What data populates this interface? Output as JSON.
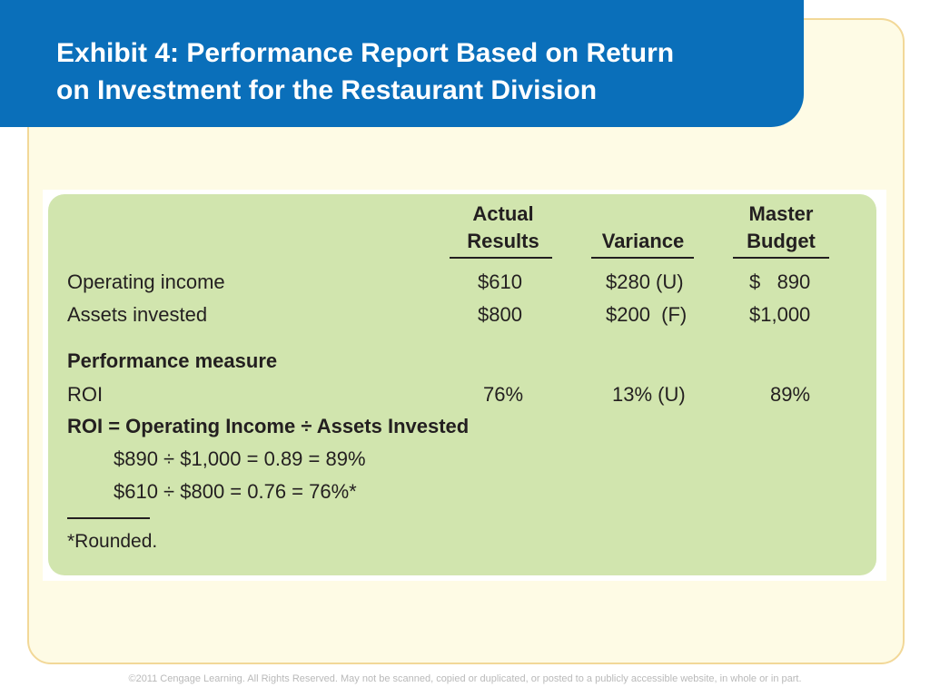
{
  "slide": {
    "title_line_1": "Exhibit 4: Performance Report Based on Return",
    "title_line_2": "on Investment for the Restaurant Division"
  },
  "exhibit": {
    "columns": {
      "actual_1": "Actual",
      "actual_2": "Results",
      "variance": "Variance",
      "master_1": "Master",
      "master_2": "Budget"
    },
    "rows": [
      {
        "label": "Operating income",
        "actual": "$610",
        "variance": "$280 (U)",
        "master": "$   890"
      },
      {
        "label": "Assets invested",
        "actual": "$800",
        "variance": "$200  (F)",
        "master": "$1,000"
      }
    ],
    "section_heading": "Performance measure",
    "roi_row": {
      "label": "ROI",
      "actual": "76%",
      "variance": "13% (U)",
      "master": "89%"
    },
    "formula_heading": "ROI = Operating Income ÷ Assets Invested",
    "calc_1": "$890 ÷ $1,000 = 0.89 = 89%",
    "calc_2": "$610 ÷ $800 = 0.76 = 76%*",
    "footnote": "*Rounded."
  },
  "footer": {
    "copyright": "©2011 Cengage Learning. All Rights Reserved. May not be scanned, copied or duplicated, or posted to a publicly accessible website, in whole or in part."
  },
  "colors": {
    "banner_blue": "#0a6fba",
    "panel_green": "#d1e5ae",
    "frame_cream": "#fefbe5",
    "frame_border": "#f2d898"
  }
}
